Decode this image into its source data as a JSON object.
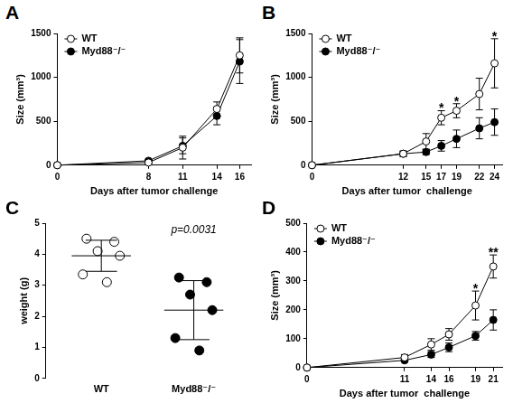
{
  "chart_data": [
    {
      "type": "line",
      "title": "A",
      "x_label": "Days after tumor challenge",
      "y_label": "Size (mm³)",
      "x": [
        0,
        8,
        11,
        14,
        16
      ],
      "series": [
        {
          "name": "WT",
          "color": "#ffffff",
          "marker": "circle",
          "values": [
            0,
            30,
            200,
            640,
            1250
          ],
          "error": [
            0,
            15,
            130,
            80,
            200
          ]
        },
        {
          "name": "Myd88⁻/⁻",
          "color": "#000000",
          "marker": "circle",
          "values": [
            0,
            50,
            220,
            560,
            1180
          ],
          "error": [
            0,
            15,
            90,
            100,
            250
          ]
        }
      ],
      "xlim": [
        0,
        17
      ],
      "xticks": [
        0,
        8,
        11,
        14,
        16
      ],
      "ylim": [
        0,
        1500
      ],
      "yticks": [
        0,
        500,
        1000,
        1500
      ],
      "grid": false,
      "legend": "top-left"
    },
    {
      "type": "line",
      "title": "B",
      "x_label": "Days after tumor  challenge",
      "y_label": "Size (mm³)",
      "x": [
        0,
        12,
        15,
        17,
        19,
        22,
        24
      ],
      "series": [
        {
          "name": "WT",
          "color": "#ffffff",
          "marker": "circle",
          "values": [
            0,
            130,
            270,
            540,
            620,
            810,
            1160
          ],
          "error": [
            0,
            30,
            90,
            80,
            80,
            180,
            280
          ]
        },
        {
          "name": "Myd88⁻/⁻",
          "color": "#000000",
          "marker": "circle",
          "values": [
            0,
            130,
            150,
            220,
            300,
            420,
            490
          ],
          "error": [
            0,
            30,
            30,
            60,
            100,
            120,
            150
          ]
        }
      ],
      "annotations": [
        {
          "text": "*",
          "x": 17
        },
        {
          "text": "*",
          "x": 19
        },
        {
          "text": "*",
          "x": 24
        }
      ],
      "xlim": [
        0,
        25
      ],
      "xticks": [
        0,
        12,
        15,
        17,
        19,
        22,
        24
      ],
      "ylim": [
        0,
        1500
      ],
      "yticks": [
        0,
        500,
        1000,
        1500
      ],
      "grid": false,
      "legend": "top-left"
    },
    {
      "type": "scatter",
      "title": "C",
      "y_label": "weight (g)",
      "categories": [
        "WT",
        "Myd88⁻/⁻"
      ],
      "values": [
        [
          4.5,
          4.4,
          4.1,
          3.95,
          3.35,
          3.1
        ],
        [
          3.25,
          3.1,
          2.7,
          2.2,
          1.3,
          0.9
        ]
      ],
      "mean": [
        3.95,
        2.2
      ],
      "sd": [
        0.5,
        0.95
      ],
      "colors": [
        "#ffffff",
        "#000000"
      ],
      "marker": "circle",
      "annotations": [
        {
          "text": "p=0.0031"
        }
      ],
      "ylim": [
        0,
        5
      ],
      "yticks": [
        0,
        1,
        2,
        3,
        4,
        5
      ],
      "grid": false
    },
    {
      "type": "line",
      "title": "D",
      "x_label": "Days after tumor  challenge",
      "y_label": "Size (mm³)",
      "x": [
        0,
        11,
        14,
        16,
        19,
        21
      ],
      "series": [
        {
          "name": "WT",
          "color": "#ffffff",
          "marker": "circle",
          "values": [
            0,
            35,
            80,
            115,
            215,
            350
          ],
          "error": [
            0,
            10,
            20,
            20,
            50,
            40
          ]
        },
        {
          "name": "Myd88⁻/⁻",
          "color": "#000000",
          "marker": "circle",
          "values": [
            0,
            25,
            45,
            70,
            110,
            165
          ],
          "error": [
            0,
            5,
            10,
            15,
            15,
            35
          ]
        }
      ],
      "annotations": [
        {
          "text": "*",
          "x": 19
        },
        {
          "text": "**",
          "x": 21
        }
      ],
      "xlim": [
        0,
        22
      ],
      "xticks": [
        0,
        11,
        14,
        16,
        19,
        21
      ],
      "ylim": [
        0,
        500
      ],
      "yticks": [
        0,
        100,
        200,
        300,
        400,
        500
      ],
      "grid": false,
      "legend": "top-left"
    }
  ]
}
